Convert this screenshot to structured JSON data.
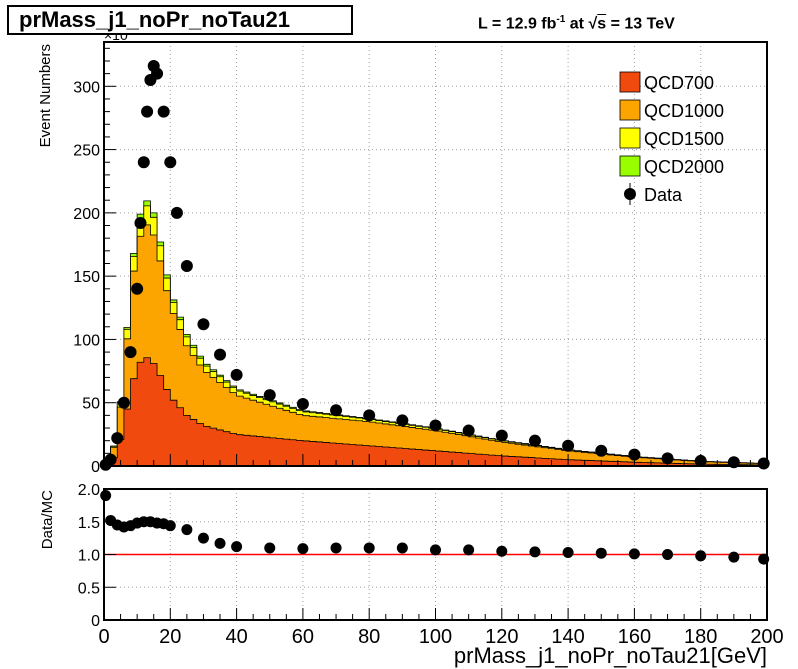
{
  "title": "prMass_j1_noPr_noTau21",
  "lumi": {
    "lead": "L = 12.9 fb",
    "exp": "-1",
    "mid": " at  ",
    "root": "√",
    "s": "s",
    "tail": " = 13 TeV"
  },
  "colors": {
    "QCD700": "#f04a0f",
    "QCD1000": "#fca400",
    "QCD1500": "#ffff00",
    "QCD2000": "#99ff00",
    "Data": "#000000",
    "ratio_line": "#ff0000",
    "grid": "#a0a0a0"
  },
  "chart_data": [
    {
      "type": "area",
      "stacked": true,
      "ylabel": "Event Numbers",
      "y_exponent_label": "×10",
      "xlim": [
        0,
        200
      ],
      "ylim": [
        0,
        335
      ],
      "yticks": [
        0,
        50,
        100,
        150,
        200,
        250,
        300
      ],
      "grid": true,
      "legend_position": "top-right",
      "series": [
        {
          "name": "QCD700",
          "x": [
            0,
            2,
            4,
            6,
            8,
            10,
            12,
            14,
            16,
            18,
            20,
            25,
            30,
            40,
            60,
            80,
            100,
            120,
            140,
            160,
            180,
            200
          ],
          "values": [
            0,
            1,
            12,
            30,
            60,
            78,
            86,
            85,
            77,
            66,
            55,
            40,
            32,
            25,
            20,
            16,
            12,
            8,
            5,
            3,
            1.5,
            0.8
          ]
        },
        {
          "name": "QCD1000",
          "x": [
            0,
            2,
            4,
            6,
            8,
            10,
            12,
            14,
            16,
            18,
            20,
            25,
            30,
            40,
            60,
            80,
            100,
            120,
            140,
            160,
            180,
            200
          ],
          "values": [
            0,
            1,
            15,
            36,
            75,
            95,
            104,
            106,
            97,
            84,
            72,
            55,
            44,
            31,
            20,
            19,
            16,
            11,
            7,
            4,
            2,
            1
          ]
        },
        {
          "name": "QCD1500",
          "x": [
            0,
            2,
            4,
            6,
            8,
            10,
            12,
            14,
            16,
            18,
            20,
            25,
            30,
            40,
            60,
            80,
            100,
            120,
            140,
            160,
            180,
            200
          ],
          "values": [
            0,
            0,
            2,
            5,
            10,
            13,
            15,
            15,
            13,
            11,
            9,
            7,
            5,
            4,
            3,
            2,
            1.5,
            1,
            0.7,
            0.4,
            0.2,
            0.1
          ]
        },
        {
          "name": "QCD2000",
          "x": [
            0,
            2,
            4,
            6,
            8,
            10,
            12,
            14,
            16,
            18,
            20,
            25,
            30,
            40,
            60,
            80,
            100,
            120,
            140,
            160,
            180,
            200
          ],
          "values": [
            0,
            0,
            0.5,
            1,
            2,
            3,
            4,
            4,
            3,
            3,
            2,
            2,
            1.5,
            1,
            0.8,
            0.5,
            0.4,
            0.3,
            0.2,
            0.1,
            0.05,
            0.02
          ]
        }
      ],
      "data_series": {
        "name": "Data",
        "x": [
          0.5,
          2,
          4,
          6,
          8,
          10,
          11,
          12,
          13,
          14,
          15,
          16,
          18,
          20,
          22,
          25,
          30,
          35,
          40,
          50,
          60,
          70,
          80,
          90,
          100,
          110,
          120,
          130,
          140,
          150,
          160,
          170,
          180,
          190,
          199
        ],
        "values": [
          1,
          5,
          22,
          50,
          90,
          140,
          192,
          240,
          280,
          305,
          316,
          310,
          280,
          240,
          200,
          158,
          112,
          88,
          72,
          56,
          49,
          44,
          40,
          36,
          32,
          28,
          24,
          20,
          16,
          12,
          9,
          6,
          4,
          3,
          2
        ]
      }
    },
    {
      "type": "scatter",
      "ylabel": "Data/MC",
      "xlabel": "prMass_j1_noPr_noTau21[GeV]",
      "xlim": [
        0,
        200
      ],
      "ylim": [
        0,
        2
      ],
      "yticks": [
        "0",
        "0.5",
        "1.0",
        "1.5",
        "2.0"
      ],
      "xticks": [
        "0",
        "20",
        "40",
        "60",
        "80",
        "100",
        "120",
        "140",
        "160",
        "180",
        "200"
      ],
      "reference_line": 1.0,
      "grid": true,
      "x": [
        0.5,
        2,
        4,
        6,
        8,
        10,
        12,
        14,
        16,
        18,
        20,
        25,
        30,
        35,
        40,
        50,
        60,
        70,
        80,
        90,
        100,
        110,
        120,
        130,
        140,
        150,
        160,
        170,
        180,
        190,
        199
      ],
      "values": [
        1.9,
        1.52,
        1.45,
        1.42,
        1.44,
        1.48,
        1.5,
        1.5,
        1.48,
        1.47,
        1.44,
        1.38,
        1.25,
        1.17,
        1.12,
        1.1,
        1.09,
        1.1,
        1.1,
        1.1,
        1.07,
        1.07,
        1.05,
        1.04,
        1.03,
        1.02,
        1.01,
        1.0,
        0.98,
        0.96,
        0.93
      ]
    }
  ]
}
